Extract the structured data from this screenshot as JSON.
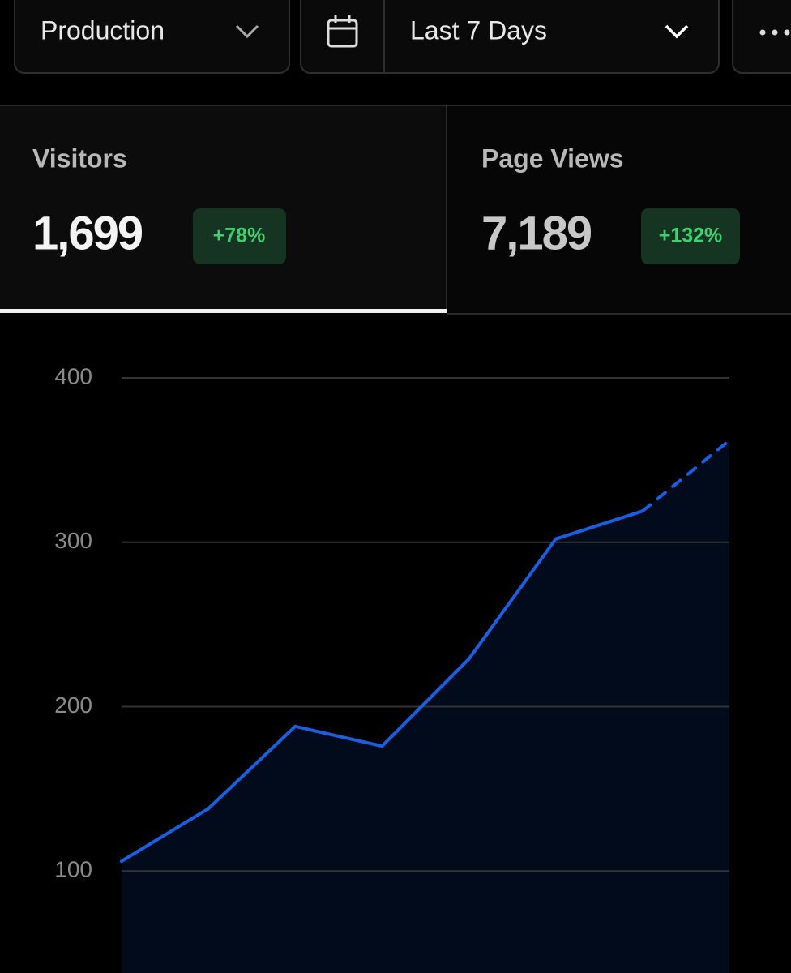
{
  "header": {
    "environment": "Production",
    "range": "Last 7 Days"
  },
  "metrics": [
    {
      "label": "Visitors",
      "value": "1,699",
      "change": "+78%"
    },
    {
      "label": "Page Views",
      "value": "7,189",
      "change": "+132%"
    }
  ],
  "chart_data": {
    "type": "line",
    "values": [
      106,
      138,
      188,
      176,
      229,
      302,
      319,
      362
    ],
    "last_segment_dashed": true,
    "color": "#1a5fe0",
    "area_color": "#020b1c",
    "ylim": [
      38,
      400
    ],
    "yticks": [
      100,
      200,
      300,
      400
    ],
    "grid": true
  }
}
